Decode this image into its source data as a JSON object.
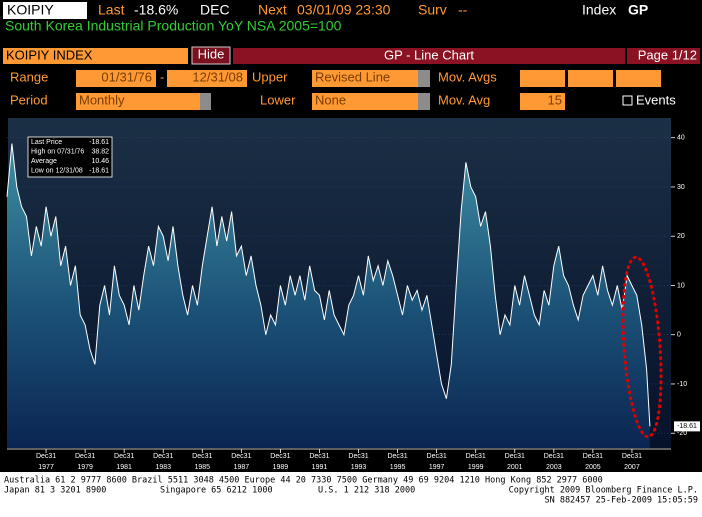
{
  "header": {
    "ticker": "KOIPIY",
    "last_label": "Last",
    "last_value": "-18.6%",
    "period": "DEC",
    "next_label": "Next",
    "next_value": "03/01/09 23:30",
    "surv_label": "Surv",
    "surv_value": "--",
    "index_label": "Index",
    "index_code": "GP",
    "subtitle": "South Korea Industrial Production YoY NSA 2005=100"
  },
  "toolbar": {
    "security": "KOIPIY INDEX",
    "hide": "Hide",
    "chart_name": "GP - Line Chart",
    "page": "Page 1/12"
  },
  "settings": {
    "range_label": "Range",
    "range_start": "01/31/76",
    "range_sep": "-",
    "range_end": "12/31/08",
    "upper_label": "Upper",
    "upper_value": "Revised Line",
    "mov_avgs_label": "Mov. Avgs",
    "period_label": "Period",
    "period_value": "Monthly",
    "lower_label": "Lower",
    "lower_value": "None",
    "mov_avg_label": "Mov. Avg",
    "mov_avg_value": "15",
    "events_label": "Events"
  },
  "chart_data": {
    "type": "line",
    "color": "#ffffff",
    "grid": true,
    "stats": [
      {
        "label": "Last Price",
        "value": -18.61
      },
      {
        "label": "High on 07/31/76",
        "value": 38.82
      },
      {
        "label": "Average",
        "value": 10.46
      },
      {
        "label": "Low on 12/31/08",
        "value": -18.61
      }
    ],
    "x": [
      1976,
      1976.25,
      1976.5,
      1976.75,
      1977,
      1977.25,
      1977.5,
      1977.75,
      1978,
      1978.25,
      1978.5,
      1978.75,
      1979,
      1979.25,
      1979.5,
      1979.75,
      1980,
      1980.25,
      1980.5,
      1980.75,
      1981,
      1981.25,
      1981.5,
      1981.75,
      1982,
      1982.25,
      1982.5,
      1982.75,
      1983,
      1983.25,
      1983.5,
      1983.75,
      1984,
      1984.25,
      1984.5,
      1984.75,
      1985,
      1985.25,
      1985.5,
      1985.75,
      1986,
      1986.25,
      1986.5,
      1986.75,
      1987,
      1987.25,
      1987.5,
      1987.75,
      1988,
      1988.25,
      1988.5,
      1988.75,
      1989,
      1989.25,
      1989.5,
      1989.75,
      1990,
      1990.25,
      1990.5,
      1990.75,
      1991,
      1991.25,
      1991.5,
      1991.75,
      1992,
      1992.25,
      1992.5,
      1992.75,
      1993,
      1993.25,
      1993.5,
      1993.75,
      1994,
      1994.25,
      1994.5,
      1994.75,
      1995,
      1995.25,
      1995.5,
      1995.75,
      1996,
      1996.25,
      1996.5,
      1996.75,
      1997,
      1997.25,
      1997.5,
      1997.75,
      1998,
      1998.25,
      1998.5,
      1998.75,
      1999,
      1999.25,
      1999.5,
      1999.75,
      2000,
      2000.25,
      2000.5,
      2000.75,
      2001,
      2001.25,
      2001.5,
      2001.75,
      2002,
      2002.25,
      2002.5,
      2002.75,
      2003,
      2003.25,
      2003.5,
      2003.75,
      2004,
      2004.25,
      2004.5,
      2004.75,
      2005,
      2005.25,
      2005.5,
      2005.75,
      2006,
      2006.25,
      2006.5,
      2006.75,
      2007,
      2007.25,
      2007.5,
      2007.75,
      2008,
      2008.25,
      2008.5,
      2008.75,
      2008.92
    ],
    "values": [
      28,
      38.82,
      30,
      26,
      24,
      16,
      22,
      18,
      26,
      20,
      24,
      14,
      18,
      10,
      14,
      4,
      2,
      -3,
      -6,
      6,
      10,
      4,
      14,
      8,
      6,
      2,
      10,
      5,
      12,
      18,
      14,
      22,
      20,
      15,
      22,
      14,
      8,
      4,
      10,
      6,
      14,
      20,
      26,
      18,
      24,
      19,
      25,
      16,
      18,
      12,
      16,
      10,
      6,
      0,
      4,
      2,
      10,
      6,
      12,
      8,
      12,
      7,
      14,
      9,
      8,
      3,
      9,
      4,
      2,
      0,
      6,
      8,
      12,
      8,
      16,
      11,
      14,
      10,
      15,
      12,
      8,
      4,
      10,
      7,
      9,
      5,
      8,
      2,
      -4,
      -10,
      -13,
      -6,
      10,
      25,
      35,
      30,
      28,
      22,
      25,
      18,
      8,
      0,
      4,
      2,
      10,
      6,
      12,
      8,
      4,
      2,
      9,
      6,
      14,
      18,
      12,
      10,
      6,
      3,
      8,
      10,
      12,
      8,
      14,
      9,
      6,
      10,
      5,
      12,
      10,
      8,
      2,
      -7,
      -18.61
    ],
    "xlim": [
      1976,
      2010
    ],
    "ylim": [
      -23,
      44
    ],
    "yticks": [
      40,
      30,
      20,
      10,
      0,
      -10,
      -20
    ],
    "xticks": [
      {
        "value": 1978,
        "label": "Dec31"
      },
      {
        "value": 1980,
        "label": "Dec31"
      },
      {
        "value": 1982,
        "label": "Dec31"
      },
      {
        "value": 1984,
        "label": "Dec31"
      },
      {
        "value": 1986,
        "label": "Dec31"
      },
      {
        "value": 1988,
        "label": "Dec31"
      },
      {
        "value": 1990,
        "label": "Dec31"
      },
      {
        "value": 1992,
        "label": "Dec31"
      },
      {
        "value": 1994,
        "label": "Dec31"
      },
      {
        "value": 1996,
        "label": "Dec31"
      },
      {
        "value": 1998,
        "label": "Dec31"
      },
      {
        "value": 2000,
        "label": "Dec31"
      },
      {
        "value": 2002,
        "label": "Dec31"
      },
      {
        "value": 2004,
        "label": "Dec31"
      },
      {
        "value": 2006,
        "label": "Dec31"
      },
      {
        "value": 2008,
        "label": "Dec31"
      }
    ],
    "xtick_years": [
      "1977",
      "1979",
      "1981",
      "1983",
      "1985",
      "1987",
      "1989",
      "1991",
      "1993",
      "1995",
      "1997",
      "1999",
      "2001",
      "2003",
      "2005",
      "2007"
    ]
  },
  "footer": {
    "line1": "Australia 61 2 9777 8600 Brazil 5511 3048 4500 Europe 44 20 7330 7500 Germany 49 69 9204 1210 Hong Kong 852 2977 6000",
    "line2_left": "Japan 81 3 3201 8900",
    "line2_mid": "Singapore 65 6212 1000",
    "line2_mid2": "U.S. 1 212 318 2000",
    "line2_right": "Copyright 2009 Bloomberg Finance L.P.",
    "line3": "SN 882457 25-Feb-2009 15:05:59"
  }
}
